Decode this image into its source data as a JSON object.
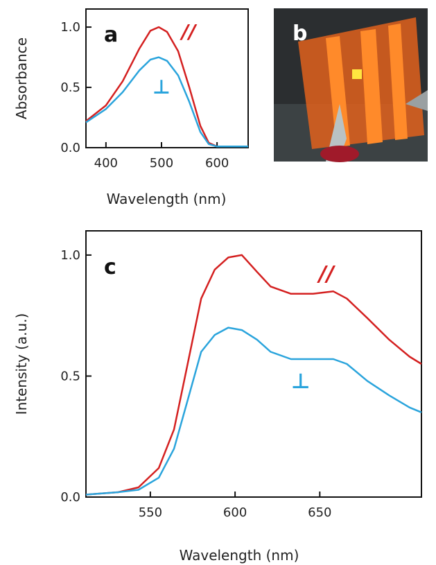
{
  "chart_data": [
    {
      "type": "line",
      "panel_label": "a",
      "x_label": "Wavelength (nm)",
      "y_label": "Absorbance",
      "xlim": [
        364,
        656
      ],
      "xticks": [
        400,
        500,
        600
      ],
      "ylim": [
        0,
        1.15
      ],
      "yticks": [
        {
          "value": 0,
          "label": "0.0"
        },
        {
          "value": 0.5,
          "label": "0.5"
        },
        {
          "value": 1,
          "label": "1.0"
        }
      ],
      "x": [
        364,
        400,
        430,
        460,
        480,
        495,
        510,
        530,
        550,
        570,
        585,
        600,
        656
      ],
      "series": [
        {
          "name": "//",
          "color": "#d42020",
          "values": [
            0.22,
            0.35,
            0.55,
            0.82,
            0.97,
            1.0,
            0.96,
            0.8,
            0.5,
            0.18,
            0.04,
            0.01,
            0.01
          ]
        },
        {
          "name": "⊥",
          "color": "#2aa4dc",
          "values": [
            0.21,
            0.32,
            0.46,
            0.64,
            0.73,
            0.75,
            0.72,
            0.6,
            0.38,
            0.13,
            0.03,
            0.01,
            0.01
          ]
        }
      ]
    },
    {
      "type": "line",
      "panel_label": "c",
      "x_label": "Wavelength (nm)",
      "y_label": "Intensity (a.u.)",
      "xlim": [
        512,
        710
      ],
      "xticks": [
        550,
        600,
        650
      ],
      "ylim": [
        0,
        1.1
      ],
      "yticks": [
        {
          "value": 0,
          "label": "0.0"
        },
        {
          "value": 0.5,
          "label": "0.5"
        },
        {
          "value": 1,
          "label": "1.0"
        }
      ],
      "x": [
        512,
        531,
        543,
        555,
        564,
        572,
        580,
        588,
        596,
        604,
        613,
        621,
        633,
        646,
        658,
        666,
        678,
        691,
        703,
        710
      ],
      "series": [
        {
          "name": "//",
          "color": "#d42020",
          "values": [
            0.01,
            0.02,
            0.04,
            0.12,
            0.28,
            0.55,
            0.82,
            0.94,
            0.99,
            1.0,
            0.93,
            0.87,
            0.84,
            0.84,
            0.85,
            0.82,
            0.74,
            0.65,
            0.58,
            0.55
          ]
        },
        {
          "name": "⊥",
          "color": "#2aa4dc",
          "values": [
            0.01,
            0.02,
            0.03,
            0.08,
            0.2,
            0.4,
            0.6,
            0.67,
            0.7,
            0.69,
            0.65,
            0.6,
            0.57,
            0.57,
            0.57,
            0.55,
            0.48,
            0.42,
            0.37,
            0.35
          ]
        }
      ]
    }
  ],
  "photo": {
    "label": "b"
  }
}
